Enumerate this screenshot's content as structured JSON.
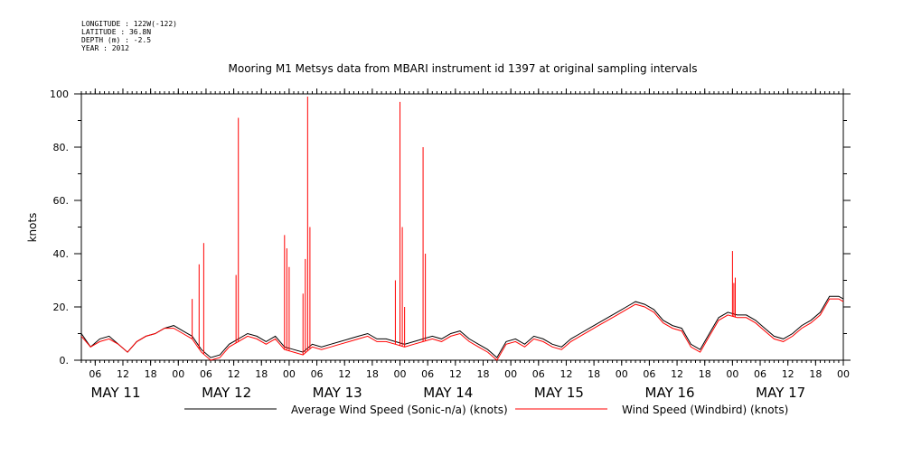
{
  "header": {
    "longitude": "LONGITUDE : 122W(-122)",
    "latitude": "LATITUDE : 36.8N",
    "depth": "DEPTH (m) : -2.5",
    "year": "YEAR : 2012"
  },
  "chart_data": {
    "type": "line",
    "title": "Mooring M1 Metsys data from MBARI instrument id 1397 at original sampling intervals",
    "ylabel": "knots",
    "xlabel": "",
    "ylim": [
      0,
      100
    ],
    "y_ticks": [
      "0.",
      "20.",
      "40.",
      "60.",
      "80.",
      "100"
    ],
    "y_tick_values": [
      0,
      20,
      40,
      60,
      80,
      100
    ],
    "xlim_hours": [
      3,
      168
    ],
    "x_tick_labels": [
      "06",
      "12",
      "18",
      "00",
      "06",
      "12",
      "18",
      "00",
      "06",
      "12",
      "18",
      "00",
      "06",
      "12",
      "18",
      "00",
      "06",
      "12",
      "18",
      "00",
      "06",
      "12",
      "18",
      "00",
      "06",
      "12",
      "18",
      "00"
    ],
    "x_tick_hours": [
      6,
      12,
      18,
      24,
      30,
      36,
      42,
      48,
      54,
      60,
      66,
      72,
      78,
      84,
      90,
      96,
      102,
      108,
      114,
      120,
      126,
      132,
      138,
      144,
      150,
      156,
      162,
      168
    ],
    "day_labels": [
      "MAY 11",
      "MAY 12",
      "MAY 13",
      "MAY 14",
      "MAY 15",
      "MAY 16",
      "MAY 17"
    ],
    "day_label_hours": [
      12,
      36,
      60,
      84,
      108,
      132,
      156
    ],
    "legend_position": "bottom",
    "series": [
      {
        "name": "Average Wind Speed (Sonic-n/a) (knots)",
        "color": "#000000",
        "x_hours": [
          3,
          5,
          7,
          9,
          11,
          13,
          15,
          17,
          19,
          21,
          23,
          25,
          27,
          29,
          31,
          33,
          35,
          37,
          39,
          41,
          43,
          45,
          47,
          49,
          51,
          53,
          55,
          57,
          59,
          61,
          63,
          65,
          67,
          69,
          71,
          73,
          75,
          77,
          79,
          81,
          83,
          85,
          87,
          89,
          91,
          93,
          95,
          97,
          99,
          101,
          103,
          105,
          107,
          109,
          111,
          113,
          115,
          117,
          119,
          121,
          123,
          125,
          127,
          129,
          131,
          133,
          135,
          137,
          139,
          141,
          143,
          145,
          147,
          149,
          151,
          153,
          155,
          157,
          159,
          161,
          163,
          165,
          167,
          168
        ],
        "values": [
          10,
          5,
          8,
          9,
          6,
          3,
          7,
          9,
          10,
          12,
          13,
          11,
          9,
          4,
          1,
          2,
          6,
          8,
          10,
          9,
          7,
          9,
          5,
          4,
          3,
          6,
          5,
          6,
          7,
          8,
          9,
          10,
          8,
          8,
          7,
          6,
          7,
          8,
          9,
          8,
          10,
          11,
          8,
          6,
          4,
          1,
          7,
          8,
          6,
          9,
          8,
          6,
          5,
          8,
          10,
          12,
          14,
          16,
          18,
          20,
          22,
          21,
          19,
          15,
          13,
          12,
          6,
          4,
          10,
          16,
          18,
          17,
          17,
          15,
          12,
          9,
          8,
          10,
          13,
          15,
          18,
          24,
          24,
          23
        ]
      },
      {
        "name": "Wind Speed (Windbird) (knots)",
        "color": "#ff0000",
        "x_hours": [
          3,
          5,
          7,
          9,
          11,
          13,
          15,
          17,
          19,
          21,
          23,
          25,
          27,
          29,
          31,
          33,
          35,
          37,
          39,
          41,
          43,
          45,
          47,
          49,
          51,
          53,
          55,
          57,
          59,
          61,
          63,
          65,
          67,
          69,
          71,
          73,
          75,
          77,
          79,
          81,
          83,
          85,
          87,
          89,
          91,
          93,
          95,
          97,
          99,
          101,
          103,
          105,
          107,
          109,
          111,
          113,
          115,
          117,
          119,
          121,
          123,
          125,
          127,
          129,
          131,
          133,
          135,
          137,
          139,
          141,
          143,
          145,
          147,
          149,
          151,
          153,
          155,
          157,
          159,
          161,
          163,
          165,
          167,
          168
        ],
        "values": [
          9,
          5,
          7,
          8,
          6,
          3,
          7,
          9,
          10,
          12,
          12,
          10,
          8,
          3,
          0,
          1,
          5,
          7,
          9,
          8,
          6,
          8,
          4,
          3,
          2,
          5,
          4,
          5,
          6,
          7,
          8,
          9,
          7,
          7,
          6,
          5,
          6,
          7,
          8,
          7,
          9,
          10,
          7,
          5,
          3,
          0,
          6,
          7,
          5,
          8,
          7,
          5,
          4,
          7,
          9,
          11,
          13,
          15,
          17,
          19,
          21,
          20,
          18,
          14,
          12,
          11,
          5,
          3,
          9,
          15,
          17,
          16,
          16,
          14,
          11,
          8,
          7,
          9,
          12,
          14,
          17,
          23,
          23,
          22
        ]
      }
    ],
    "spikes": {
      "series": "Wind Speed (Windbird) (knots)",
      "x_hours": [
        27,
        28.5,
        29.5,
        36.5,
        37,
        47,
        47.5,
        48,
        51,
        51.5,
        52,
        52.5,
        71,
        72,
        72.5,
        73,
        77,
        77.5,
        144,
        144.3,
        144.6
      ],
      "values": [
        23,
        36,
        44,
        32,
        91,
        47,
        42,
        35,
        25,
        38,
        99,
        50,
        30,
        97,
        50,
        20,
        80,
        40,
        41,
        29,
        31
      ]
    }
  }
}
